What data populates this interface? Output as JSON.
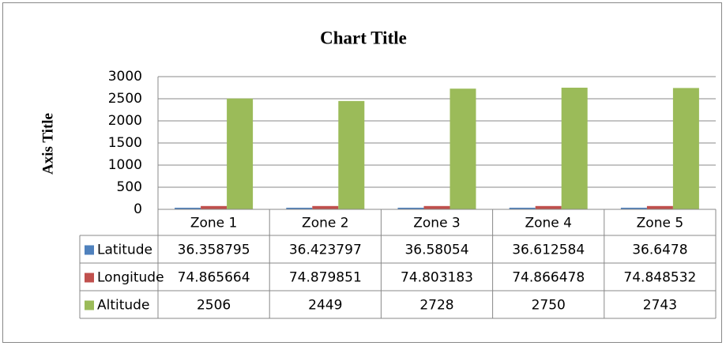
{
  "chart_data": {
    "type": "bar",
    "title": "Chart Title",
    "y_label": "Axis Title",
    "categories": [
      "Zone 1",
      "Zone 2",
      "Zone 3",
      "Zone 4",
      "Zone 5"
    ],
    "series": [
      {
        "name": "Latitude",
        "color": "#4f81bd",
        "values": [
          36.358795,
          36.423797,
          36.58054,
          36.612584,
          36.6478
        ]
      },
      {
        "name": "Longitude",
        "color": "#c0504d",
        "values": [
          74.865664,
          74.879851,
          74.803183,
          74.866478,
          74.848532
        ]
      },
      {
        "name": "Altitude",
        "color": "#9bbb59",
        "values": [
          2506,
          2449,
          2728,
          2750,
          2743
        ]
      }
    ],
    "ylim": [
      0,
      3000
    ],
    "yticks": [
      0,
      500,
      1000,
      1500,
      2000,
      2500,
      3000
    ],
    "grid": true,
    "data_table": true
  }
}
